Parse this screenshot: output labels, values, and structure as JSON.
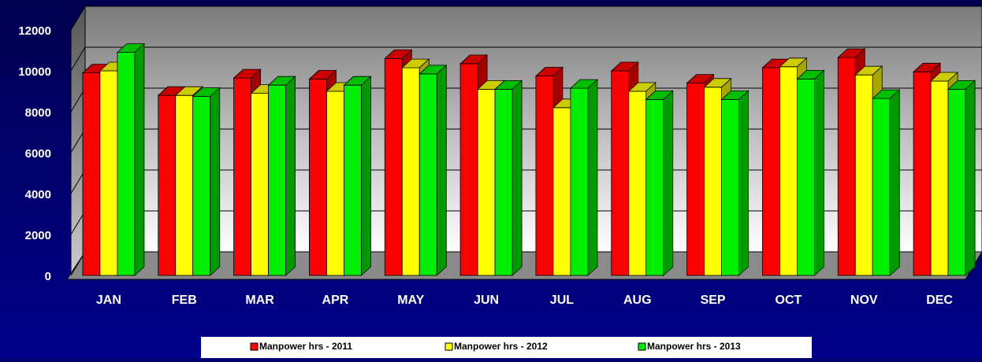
{
  "chart_data": {
    "type": "bar3d",
    "categories": [
      "JAN",
      "FEB",
      "MAR",
      "APR",
      "MAY",
      "JUN",
      "JUL",
      "AUG",
      "SEP",
      "OCT",
      "NOV",
      "DEC"
    ],
    "series": [
      {
        "name": "Manpower hrs - 2011",
        "color": "#ff0000",
        "values": [
          9900,
          8800,
          9650,
          9600,
          10600,
          10350,
          9750,
          10000,
          9400,
          10150,
          10650,
          9950
        ]
      },
      {
        "name": "Manpower hrs - 2012",
        "color": "#ffff00",
        "values": [
          10000,
          8800,
          8900,
          9000,
          10150,
          9100,
          8200,
          9000,
          9200,
          10200,
          9800,
          9500
        ]
      },
      {
        "name": "Manpower hrs - 2013",
        "color": "#00ee00",
        "values": [
          10900,
          8750,
          9300,
          9300,
          9850,
          9100,
          9150,
          8600,
          8600,
          9600,
          8650,
          9100
        ]
      }
    ],
    "ylim": [
      0,
      12000
    ],
    "yticks": [
      0,
      2000,
      4000,
      6000,
      8000,
      10000,
      12000
    ],
    "grid": true,
    "legend": "bottom"
  }
}
